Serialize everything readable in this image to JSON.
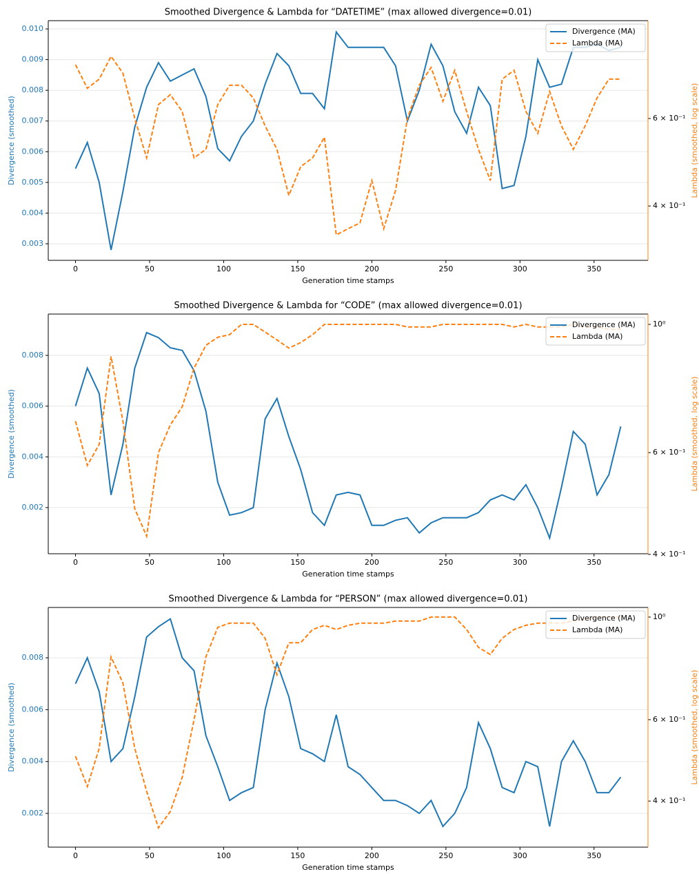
{
  "chart_data": [
    {
      "type": "line",
      "title": "Smoothed Divergence & Lambda for “DATETIME” (max allowed divergence=0.01)",
      "xlabel": "Generation time stamps",
      "ylabel": "Divergence (smoothed)",
      "y2label": "Lambda (smoothed, log scale)",
      "x": [
        0,
        8,
        16,
        24,
        32,
        40,
        48,
        56,
        64,
        72,
        80,
        88,
        96,
        104,
        112,
        120,
        128,
        136,
        144,
        152,
        160,
        168,
        176,
        184,
        192,
        200,
        208,
        216,
        224,
        232,
        240,
        248,
        256,
        264,
        272,
        280,
        288,
        296,
        304,
        312,
        320,
        328,
        336,
        344,
        352,
        360,
        368
      ],
      "series": [
        {
          "name": "Divergence (MA)",
          "color": "#1f77b4",
          "style": "solid",
          "values": [
            0.00545,
            0.0063,
            0.005,
            0.0028,
            0.0047,
            0.0068,
            0.0081,
            0.0089,
            0.0083,
            0.0085,
            0.0087,
            0.0078,
            0.0061,
            0.0057,
            0.0065,
            0.007,
            0.0082,
            0.0092,
            0.0088,
            0.0079,
            0.0079,
            0.0074,
            0.0099,
            0.0094,
            0.0094,
            0.0094,
            0.0094,
            0.0088,
            0.007,
            0.008,
            0.0095,
            0.0088,
            0.0073,
            0.0066,
            0.0081,
            0.0075,
            0.0048,
            0.0049,
            0.0065,
            0.009,
            0.0081,
            0.0082,
            0.0094,
            0.0094,
            0.0095,
            0.0093,
            0.0094
          ]
        },
        {
          "name": "Lambda (MA)",
          "color": "#ff7f0e",
          "style": "dashed",
          "axis": "y2",
          "values": [
            0.77,
            0.69,
            0.72,
            0.8,
            0.74,
            0.6,
            0.5,
            0.64,
            0.67,
            0.62,
            0.5,
            0.52,
            0.64,
            0.7,
            0.7,
            0.66,
            0.58,
            0.52,
            0.42,
            0.48,
            0.5,
            0.55,
            0.35,
            0.36,
            0.37,
            0.45,
            0.36,
            0.43,
            0.6,
            0.7,
            0.76,
            0.65,
            0.75,
            0.62,
            0.52,
            0.45,
            0.72,
            0.75,
            0.62,
            0.56,
            0.68,
            0.58,
            0.52,
            0.58,
            0.66,
            0.72,
            0.72
          ]
        }
      ],
      "xlim": [
        -18.4,
        386.4
      ],
      "xticks": [
        0,
        50,
        100,
        150,
        200,
        250,
        300,
        350
      ],
      "ylim": [
        0.00246,
        0.01027
      ],
      "yticks": [
        0.003,
        0.004,
        0.005,
        0.006,
        0.007,
        0.008,
        0.009,
        {
          "value": 0.01,
          "label": "0.010"
        }
      ],
      "y2lim": [
        0.311,
        0.944
      ],
      "y2ticks": [
        {
          "value": 0.4,
          "label": "4 × 10⁻¹"
        },
        {
          "value": 0.6,
          "label": "6 × 10⁻¹"
        }
      ],
      "y2scale": "log",
      "grid": true,
      "legend": "upper right"
    },
    {
      "type": "line",
      "title": "Smoothed Divergence & Lambda for “CODE” (max allowed divergence=0.01)",
      "xlabel": "Generation time stamps",
      "ylabel": "Divergence (smoothed)",
      "y2label": "Lambda (smoothed, log scale)",
      "x": [
        0,
        8,
        16,
        24,
        32,
        40,
        48,
        56,
        64,
        72,
        80,
        88,
        96,
        104,
        112,
        120,
        128,
        136,
        144,
        152,
        160,
        168,
        176,
        184,
        192,
        200,
        208,
        216,
        224,
        232,
        240,
        248,
        256,
        264,
        272,
        280,
        288,
        296,
        304,
        312,
        320,
        328,
        336,
        344,
        352,
        360,
        368
      ],
      "series": [
        {
          "name": "Divergence (MA)",
          "color": "#1f77b4",
          "style": "solid",
          "values": [
            0.006,
            0.0075,
            0.0065,
            0.0025,
            0.0045,
            0.0075,
            0.0089,
            0.0087,
            0.0083,
            0.0082,
            0.0074,
            0.0058,
            0.003,
            0.0017,
            0.0018,
            0.002,
            0.0055,
            0.0063,
            0.0048,
            0.0035,
            0.0018,
            0.0013,
            0.0025,
            0.0026,
            0.0025,
            0.0013,
            0.0013,
            0.0015,
            0.0016,
            0.001,
            0.0014,
            0.0016,
            0.0016,
            0.0016,
            0.0018,
            0.0023,
            0.0025,
            0.0023,
            0.0029,
            0.002,
            0.0008,
            0.0028,
            0.005,
            0.0045,
            0.0025,
            0.0033,
            0.0052
          ]
        },
        {
          "name": "Lambda (MA)",
          "color": "#ff7f0e",
          "style": "dashed",
          "axis": "y2",
          "values": [
            0.68,
            0.57,
            0.62,
            0.88,
            0.68,
            0.48,
            0.43,
            0.6,
            0.67,
            0.72,
            0.84,
            0.92,
            0.95,
            0.96,
            1.0,
            1.0,
            0.97,
            0.94,
            0.91,
            0.93,
            0.96,
            1.0,
            1.0,
            1.0,
            1.0,
            1.0,
            1.0,
            1.0,
            0.99,
            0.99,
            0.99,
            1.0,
            1.0,
            1.0,
            1.0,
            1.0,
            1.0,
            0.99,
            1.0,
            0.99,
            0.99,
            0.99,
            1.0,
            0.99,
            0.99,
            0.98,
            0.98
          ]
        }
      ],
      "xlim": [
        -18.4,
        386.4
      ],
      "xticks": [
        0,
        50,
        100,
        150,
        200,
        250,
        300,
        350
      ],
      "ylim": [
        0.00018,
        0.00963
      ],
      "yticks": [
        0.002,
        0.004,
        0.006,
        0.008
      ],
      "y2lim": [
        0.401,
        1.042
      ],
      "y2ticks": [
        {
          "value": 0.4,
          "label": "4 × 10⁻¹"
        },
        {
          "value": 0.6,
          "label": "6 × 10⁻¹"
        },
        {
          "value": 1,
          "label": "10⁰"
        }
      ],
      "y2scale": "log",
      "grid": true,
      "legend": "upper right"
    },
    {
      "type": "line",
      "title": "Smoothed Divergence & Lambda for “PERSON” (max allowed divergence=0.01)",
      "xlabel": "Generation time stamps",
      "ylabel": "Divergence (smoothed)",
      "y2label": "Lambda (smoothed, log scale)",
      "x": [
        0,
        8,
        16,
        24,
        32,
        40,
        48,
        56,
        64,
        72,
        80,
        88,
        96,
        104,
        112,
        120,
        128,
        136,
        144,
        152,
        160,
        168,
        176,
        184,
        192,
        200,
        208,
        216,
        224,
        232,
        240,
        248,
        256,
        264,
        272,
        280,
        288,
        296,
        304,
        312,
        320,
        328,
        336,
        344,
        352,
        360,
        368
      ],
      "series": [
        {
          "name": "Divergence (MA)",
          "color": "#1f77b4",
          "style": "solid",
          "values": [
            0.007,
            0.008,
            0.0067,
            0.004,
            0.0045,
            0.0065,
            0.0088,
            0.0092,
            0.0095,
            0.008,
            0.0075,
            0.005,
            0.0038,
            0.0025,
            0.0028,
            0.003,
            0.006,
            0.0078,
            0.0065,
            0.0045,
            0.0043,
            0.004,
            0.0058,
            0.0038,
            0.0035,
            0.003,
            0.0025,
            0.0025,
            0.0023,
            0.002,
            0.0025,
            0.0015,
            0.002,
            0.003,
            0.0055,
            0.0045,
            0.003,
            0.0028,
            0.004,
            0.0038,
            0.0015,
            0.004,
            0.0048,
            0.004,
            0.0028,
            0.0028,
            0.0034
          ]
        },
        {
          "name": "Lambda (MA)",
          "color": "#ff7f0e",
          "style": "dashed",
          "axis": "y2",
          "values": [
            0.5,
            0.43,
            0.52,
            0.82,
            0.72,
            0.52,
            0.42,
            0.35,
            0.38,
            0.45,
            0.6,
            0.82,
            0.95,
            0.97,
            0.97,
            0.97,
            0.9,
            0.75,
            0.88,
            0.88,
            0.94,
            0.96,
            0.94,
            0.96,
            0.97,
            0.97,
            0.97,
            0.98,
            0.98,
            0.98,
            1.0,
            1.0,
            1.0,
            0.94,
            0.86,
            0.83,
            0.9,
            0.94,
            0.96,
            0.97,
            0.97,
            0.97,
            0.98,
            0.99,
            1.0,
            1.0,
            1.0
          ]
        }
      ],
      "xlim": [
        -18.4,
        386.4
      ],
      "xticks": [
        0,
        50,
        100,
        150,
        200,
        250,
        300,
        350
      ],
      "ylim": [
        0.0007,
        0.00994
      ],
      "yticks": [
        0.002,
        0.004,
        0.006,
        0.008
      ],
      "y2lim": [
        0.318,
        1.049
      ],
      "y2ticks": [
        {
          "value": 0.4,
          "label": "4 × 10⁻¹"
        },
        {
          "value": 0.6,
          "label": "6 × 10⁻¹"
        },
        {
          "value": 1,
          "label": "10⁰"
        }
      ],
      "y2scale": "log",
      "grid": true,
      "legend": "upper right"
    }
  ]
}
